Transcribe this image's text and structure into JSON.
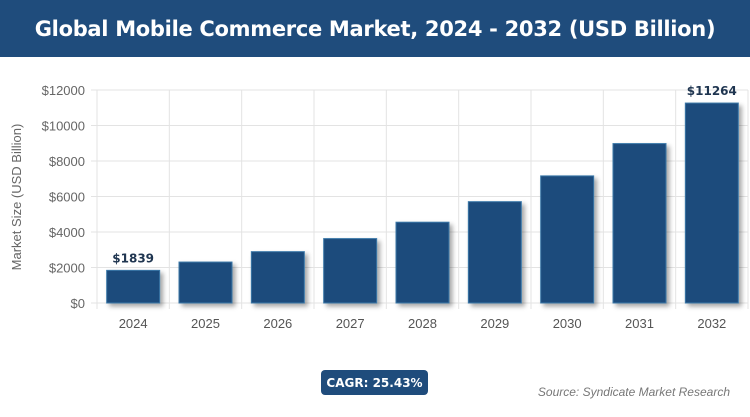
{
  "chart_data": {
    "type": "bar",
    "title": "Global Mobile Commerce Market, 2024 - 2032 (USD Billion)",
    "xlabel": "",
    "ylabel": "Market Size (USD Billion)",
    "categories": [
      "2024",
      "2025",
      "2026",
      "2027",
      "2028",
      "2029",
      "2030",
      "2031",
      "2032"
    ],
    "values": [
      1839,
      2307,
      2893,
      3629,
      4552,
      5709,
      7161,
      8982,
      11264
    ],
    "data_labels": {
      "0": "$1839",
      "8": "$11264"
    },
    "ylim": [
      0,
      12000
    ],
    "yticks": [
      0,
      2000,
      4000,
      6000,
      8000,
      10000,
      12000
    ],
    "ytick_labels": [
      "$0",
      "$2000",
      "$4000",
      "$6000",
      "$8000",
      "$10000",
      "$12000"
    ],
    "grid": true,
    "bar_color": "#1f4c7c"
  },
  "cagr_label": "CAGR: 25.43%",
  "source": "Source: Syndicate Market Research"
}
